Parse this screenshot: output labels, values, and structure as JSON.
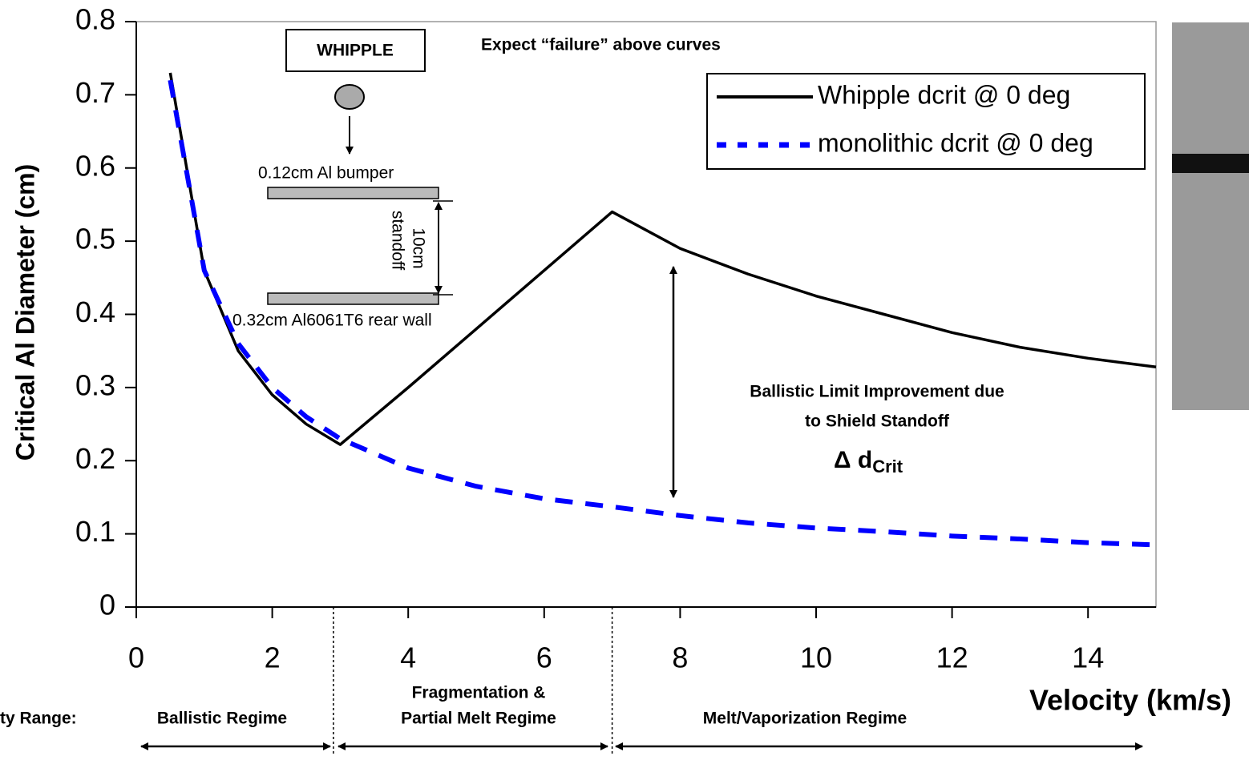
{
  "chart_data": {
    "type": "line",
    "x_label": "Velocity (km/s)",
    "y_label": "Critical Al Diameter (cm)",
    "x": [
      0.5,
      1,
      1.5,
      2,
      2.5,
      3,
      4,
      5,
      6,
      7,
      8,
      9,
      10,
      11,
      12,
      13,
      14,
      15
    ],
    "series": [
      {
        "name": "Whipple dcrit @ 0 deg",
        "color": "#000000",
        "style": "solid",
        "values": [
          0.73,
          0.46,
          0.35,
          0.29,
          0.25,
          0.222,
          0.3,
          0.38,
          0.46,
          0.54,
          0.49,
          0.455,
          0.425,
          0.4,
          0.375,
          0.355,
          0.34,
          0.328
        ]
      },
      {
        "name": "monolithic dcrit @ 0 deg",
        "color": "#0000ff",
        "style": "dashed",
        "values": [
          0.72,
          0.46,
          0.36,
          0.3,
          0.26,
          0.23,
          0.19,
          0.165,
          0.148,
          0.137,
          0.125,
          0.115,
          0.108,
          0.103,
          0.097,
          0.093,
          0.088,
          0.085
        ]
      }
    ],
    "xlim": [
      0,
      15
    ],
    "ylim": [
      0,
      0.8
    ],
    "xticks": [
      0,
      2,
      4,
      6,
      8,
      10,
      12,
      14
    ],
    "yticks": [
      0,
      0.1,
      0.2,
      0.3,
      0.4,
      0.5,
      0.6,
      0.7,
      0.8
    ],
    "legend": "top-right",
    "regime_boundaries": [
      2.9,
      7
    ],
    "annotations": {
      "failure": "Expect “failure” above curves",
      "whipple": "WHIPPLE",
      "bumper": "0.12cm Al bumper",
      "standoff_1": "10cm",
      "standoff_2": "standoff",
      "rear_wall": "0.32cm Al6061T6 rear wall",
      "improvement_1": "Ballistic Limit Improvement due",
      "improvement_2": "to Shield Standoff",
      "delta": "Δ d",
      "delta_sub": "Crit",
      "range_label": "ty Range:",
      "regime_1": "Ballistic Regime",
      "regime_2a": "Fragmentation &",
      "regime_2b": "Partial Melt Regime",
      "regime_3": "Melt/Vaporization Regime"
    }
  }
}
